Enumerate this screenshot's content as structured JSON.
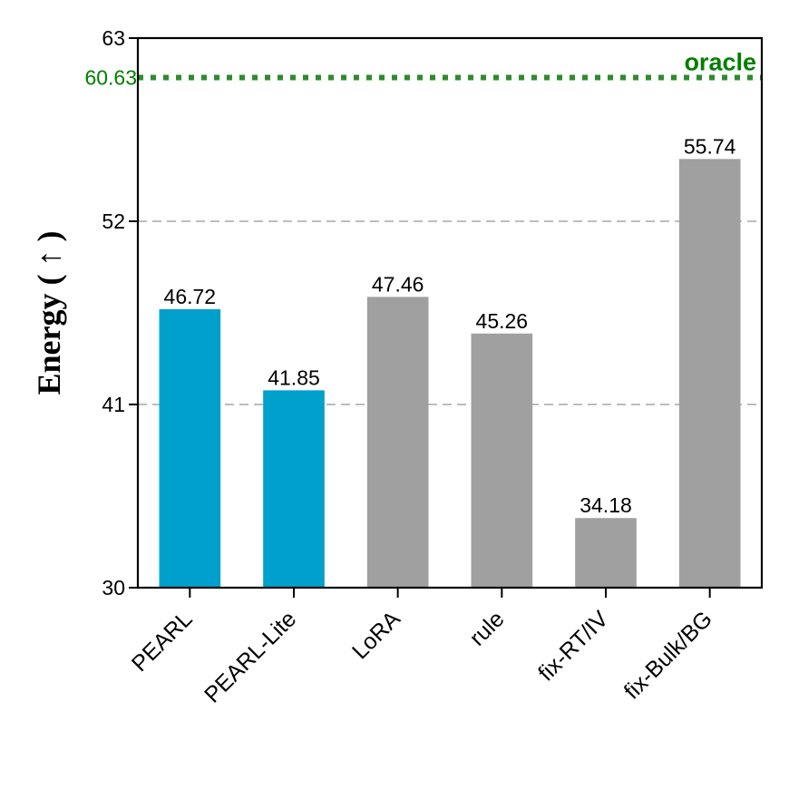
{
  "chart_data": {
    "type": "bar",
    "categories": [
      "PEARL",
      "PEARL-Lite",
      "LoRA",
      "rule",
      "fix-RT/IV",
      "fix-Bulk/BG"
    ],
    "values": [
      46.72,
      41.85,
      47.46,
      45.26,
      34.18,
      55.74
    ],
    "value_labels": [
      "46.72",
      "41.85",
      "47.46",
      "45.26",
      "34.18",
      "55.74"
    ],
    "bar_colors": [
      "#00a0cc",
      "#00a0cc",
      "#a0a0a0",
      "#a0a0a0",
      "#a0a0a0",
      "#a0a0a0"
    ],
    "ylabel": "Energy ( ↑ )",
    "ylim": [
      30,
      63
    ],
    "yticks": [
      30,
      41,
      52,
      63
    ],
    "ytick_labels": [
      "30",
      "41",
      "52",
      "63"
    ],
    "grid": "horizontal-dashed",
    "reference_line": {
      "value": 60.63,
      "tick_label": "60.63",
      "label": "oracle",
      "color": "#2e8b2e",
      "text_color": "#007f00"
    }
  }
}
